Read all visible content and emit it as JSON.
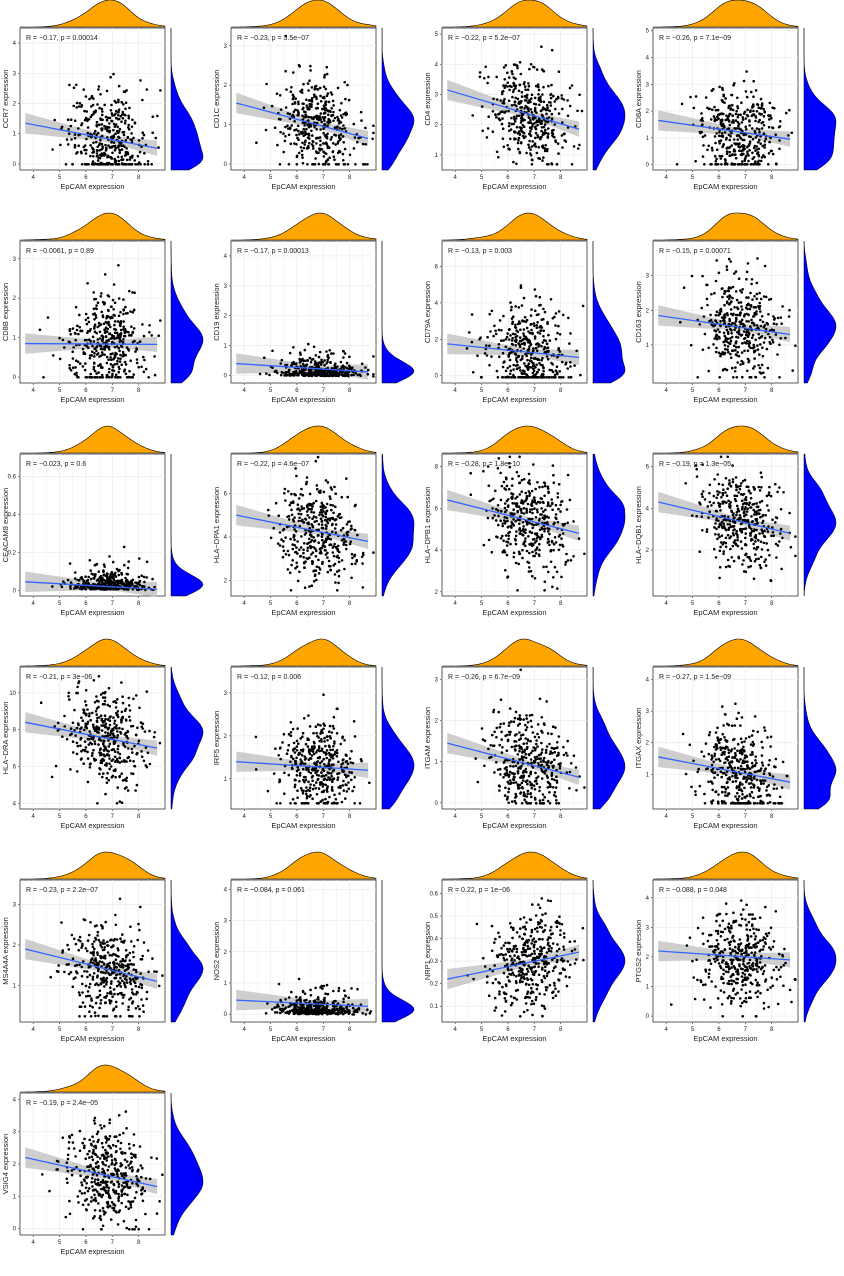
{
  "figure": {
    "xlabel": "EpCAM expression",
    "x_ticks": [
      4,
      5,
      6,
      7,
      8
    ]
  },
  "colors": {
    "top_density": "#FFA500",
    "right_density": "#0000FF",
    "points": "#000000",
    "fit_line": "#3366FF",
    "ci_band": "#BEBEBE",
    "grid": "#EBEBEB"
  },
  "chart_data": [
    {
      "type": "scatter",
      "ylabel": "CCR7 expression",
      "annotation": "R = −0.17, p = 0.00014",
      "yticks": [
        0,
        1,
        2,
        3,
        4
      ],
      "ylim": [
        -0.2,
        4.5
      ],
      "fit": [
        1.35,
        0.52
      ],
      "n": 400
    },
    {
      "type": "scatter",
      "ylabel": "CD1C expression",
      "annotation": "R = −0.23, p = 3.5e−07",
      "yticks": [
        0,
        1,
        2,
        3
      ],
      "ylim": [
        -0.15,
        3.45
      ],
      "fit": [
        1.55,
        0.65
      ],
      "n": 400
    },
    {
      "type": "scatter",
      "ylabel": "CD4 expression",
      "annotation": "R = −0.22, p = 5.2e−07",
      "yticks": [
        1,
        2,
        3,
        4,
        5
      ],
      "ylim": [
        0.5,
        5.2
      ],
      "fit": [
        3.15,
        1.85
      ],
      "n": 400
    },
    {
      "type": "scatter",
      "ylabel": "CD8A expression",
      "annotation": "R = −0.26, p = 7.1e−09",
      "yticks": [
        0,
        1,
        2,
        3,
        4,
        5
      ],
      "ylim": [
        -0.2,
        5.1
      ],
      "fit": [
        1.65,
        0.95
      ],
      "n": 400
    },
    {
      "type": "scatter",
      "ylabel": "CD8B expression",
      "annotation": "R = −0.0061, p = 0.89",
      "yticks": [
        0,
        1,
        2,
        3
      ],
      "ylim": [
        -0.15,
        3.45
      ],
      "fit": [
        0.85,
        0.83
      ],
      "n": 400
    },
    {
      "type": "scatter",
      "ylabel": "CD19 expression",
      "annotation": "R = −0.17, p = 0.00013",
      "yticks": [
        0,
        1,
        2,
        3,
        4
      ],
      "ylim": [
        -0.25,
        4.5
      ],
      "fit": [
        0.4,
        0.12
      ],
      "n": 400
    },
    {
      "type": "scatter",
      "ylabel": "CD79A expression",
      "annotation": "R = −0.13, p = 0.003",
      "yticks": [
        0,
        2,
        4,
        6
      ],
      "ylim": [
        -0.4,
        7.4
      ],
      "fit": [
        1.75,
        1.0
      ],
      "n": 400
    },
    {
      "type": "scatter",
      "ylabel": "CD163 expression",
      "annotation": "R = −0.15, p = 0.00071",
      "yticks": [
        1,
        2,
        3
      ],
      "ylim": [
        -0.1,
        4.0
      ],
      "fit": [
        1.85,
        1.3
      ],
      "n": 400
    },
    {
      "type": "scatter",
      "ylabel": "CEACAM8 expression",
      "annotation": "R = −0.023, p = 0.6",
      "yticks": [
        0.0,
        0.2,
        0.4,
        0.6
      ],
      "ylim": [
        -0.03,
        0.72
      ],
      "fit": [
        0.045,
        0.005
      ],
      "n": 400
    },
    {
      "type": "scatter",
      "ylabel": "HLA−DPA1 expression",
      "annotation": "R = −0.22, p = 4.6e−07",
      "yticks": [
        2,
        4,
        6
      ],
      "ylim": [
        1.3,
        7.8
      ],
      "fit": [
        5.0,
        3.8
      ],
      "n": 400
    },
    {
      "type": "scatter",
      "ylabel": "HLA−DPB1 expression",
      "annotation": "R = −0.28, p = 1.8e−10",
      "yticks": [
        2,
        4,
        6,
        8
      ],
      "ylim": [
        1.8,
        8.6
      ],
      "fit": [
        6.4,
        4.8
      ],
      "n": 400
    },
    {
      "type": "scatter",
      "ylabel": "HLA−DQB1 expression",
      "annotation": "R = −0.19, p = 1.3e−05",
      "yticks": [
        2,
        4,
        6
      ],
      "ylim": [
        -0.2,
        6.6
      ],
      "fit": [
        4.3,
        2.8
      ],
      "n": 400
    },
    {
      "type": "scatter",
      "ylabel": "HLA−DRA expression",
      "annotation": "R = −0.21, p = 3e−06",
      "yticks": [
        4,
        6,
        8,
        10
      ],
      "ylim": [
        3.7,
        11.4
      ],
      "fit": [
        8.4,
        7.0
      ],
      "n": 400
    },
    {
      "type": "scatter",
      "ylabel": "IRF5 expression",
      "annotation": "R = −0.12, p = 0.006",
      "yticks": [
        1,
        2,
        3
      ],
      "ylim": [
        0.3,
        3.6
      ],
      "fit": [
        1.4,
        1.2
      ],
      "n": 400
    },
    {
      "type": "scatter",
      "ylabel": "ITGAM expression",
      "annotation": "R = −0.26, p = 6.7e−09",
      "yticks": [
        0,
        1,
        2,
        3
      ],
      "ylim": [
        -0.15,
        3.3
      ],
      "fit": [
        1.45,
        0.62
      ],
      "n": 400
    },
    {
      "type": "scatter",
      "ylabel": "ITGAX expression",
      "annotation": "R = −0.27, p = 1.5e−09",
      "yticks": [
        1,
        2,
        3,
        4
      ],
      "ylim": [
        -0.1,
        4.4
      ],
      "fit": [
        1.55,
        0.75
      ],
      "n": 400
    },
    {
      "type": "scatter",
      "ylabel": "MS4A4A expression",
      "annotation": "R = −0.23, p = 2.2e−07",
      "yticks": [
        1,
        2,
        3
      ],
      "ylim": [
        0.1,
        3.6
      ],
      "fit": [
        1.9,
        1.1
      ],
      "n": 400
    },
    {
      "type": "scatter",
      "ylabel": "NOS2 expression",
      "annotation": "R = −0.084, p = 0.061",
      "yticks": [
        0,
        1,
        2,
        3,
        4
      ],
      "ylim": [
        -0.25,
        4.3
      ],
      "fit": [
        0.45,
        0.25
      ],
      "n": 400
    },
    {
      "type": "scatter",
      "ylabel": "NRP1 expression",
      "annotation": "R = 0.22, p = 1e−06",
      "yticks": [
        0.1,
        0.2,
        0.3,
        0.4,
        0.5,
        0.6
      ],
      "ylim": [
        0.03,
        0.66
      ],
      "fit": [
        0.22,
        0.34
      ],
      "n": 400
    },
    {
      "type": "scatter",
      "ylabel": "PTGS2 expression",
      "annotation": "R = −0.088, p = 0.048",
      "yticks": [
        0,
        1,
        2,
        3,
        4
      ],
      "ylim": [
        -0.2,
        4.6
      ],
      "fit": [
        2.2,
        1.9
      ],
      "n": 400
    },
    {
      "type": "scatter",
      "ylabel": "VSIG4 expression",
      "annotation": "R = −0.19, p = 2.4e−05",
      "yticks": [
        0,
        1,
        2,
        3,
        4
      ],
      "ylim": [
        -0.2,
        4.2
      ],
      "fit": [
        2.2,
        1.3
      ],
      "n": 400
    }
  ]
}
